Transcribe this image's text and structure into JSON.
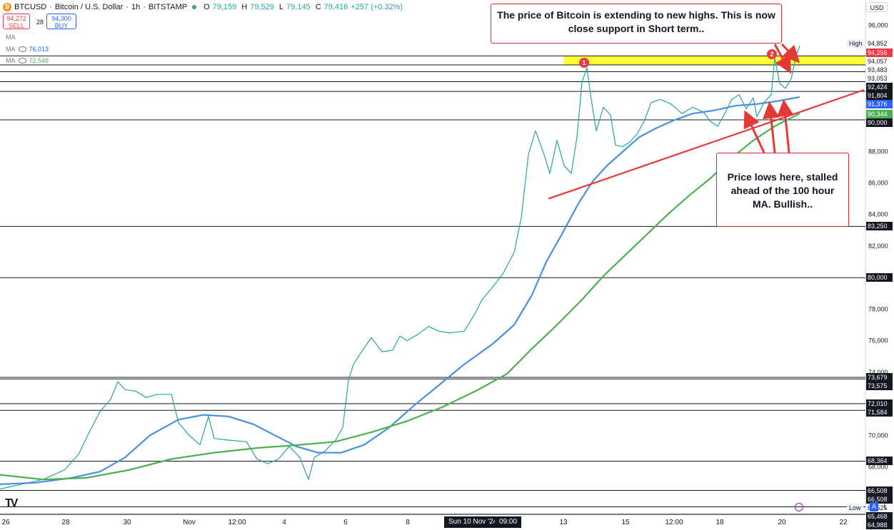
{
  "header": {
    "symbol": "BTCUSD",
    "sep1": "·",
    "name": "Bitcoin / U.S. Dollar",
    "sep2": "·",
    "interval": "1h",
    "sep3": "·",
    "exchange": "BITSTAMP",
    "ohlc": [
      {
        "k": "O",
        "v": "79,159"
      },
      {
        "k": "H",
        "v": "79,529"
      },
      {
        "k": "L",
        "v": "79,145"
      },
      {
        "k": "C",
        "v": "79,416"
      }
    ],
    "change": "+257 (+0.32%)",
    "sell_price": "94,272",
    "sell_label": "SELL",
    "spread": "28",
    "buy_price": "94,300",
    "buy_label": "BUY",
    "ma_rows": [
      {
        "label": "MA",
        "value": ""
      },
      {
        "label": "MA",
        "value": "76,013"
      },
      {
        "label": "MA",
        "value": "72,548"
      }
    ]
  },
  "currency": "USD",
  "chart_data": {
    "type": "line",
    "title": "",
    "y_range": [
      64000,
      97600
    ],
    "y_ticks": [
      "96,000",
      "94,000",
      "92,000",
      "90,000",
      "88,000",
      "86,000",
      "84,000",
      "82,000",
      "80,000",
      "78,000",
      "76,000",
      "74,000",
      "72,000",
      "70,000",
      "68,000",
      "66,000"
    ],
    "x_ticks": [
      "26",
      "28",
      "30",
      "Nov",
      "12:00",
      "4",
      "6",
      "8",
      "Sun 10 Nov '24",
      "09:00",
      "13",
      "15",
      "12:00",
      "18",
      "20",
      "22"
    ],
    "price_tags": [
      {
        "value": "94,852",
        "style": "plain",
        "side_label": "High"
      },
      {
        "value": "94,256",
        "style": "red"
      },
      {
        "value": "94,057",
        "style": "plain"
      },
      {
        "value": "93,483",
        "style": "plain"
      },
      {
        "value": "93,053",
        "style": "plain"
      },
      {
        "value": "92,424",
        "style": "dark"
      },
      {
        "value": "91,804",
        "style": "dark"
      },
      {
        "value": "91,376",
        "style": "blue"
      },
      {
        "value": "90,344",
        "style": "green"
      },
      {
        "value": "90,000",
        "style": "dark"
      },
      {
        "value": "83,250",
        "style": "dark"
      },
      {
        "value": "80,000",
        "style": "dark"
      },
      {
        "value": "73,679",
        "style": "dark"
      },
      {
        "value": "73,575",
        "style": "dark"
      },
      {
        "value": "72,010",
        "style": "dark"
      },
      {
        "value": "71,584",
        "style": "dark"
      },
      {
        "value": "68,364",
        "style": "dark"
      },
      {
        "value": "66,508",
        "style": "dark"
      },
      {
        "value": "66,508",
        "style": "dark"
      },
      {
        "value": "65,521",
        "style": "plain",
        "side_label": "Low"
      },
      {
        "value": "65,468",
        "style": "dark"
      },
      {
        "value": "64,988",
        "style": "dark"
      }
    ],
    "horizontal_levels": [
      94057,
      93483,
      93053,
      92424,
      91804,
      90000,
      83250,
      80000,
      73679,
      73575,
      72010,
      71584,
      68364,
      66508,
      65468,
      64988
    ],
    "support_zone": [
      93483,
      94057
    ],
    "series": [
      {
        "name": "",
        "color": "#26a69a",
        "points": [
          [
            0,
            66600
          ],
          [
            30,
            66900
          ],
          [
            60,
            67200
          ],
          [
            90,
            67800
          ],
          [
            110,
            68800
          ],
          [
            125,
            70200
          ],
          [
            140,
            71500
          ],
          [
            155,
            72300
          ],
          [
            165,
            73400
          ],
          [
            175,
            72900
          ],
          [
            190,
            72800
          ],
          [
            205,
            72400
          ],
          [
            220,
            72600
          ],
          [
            240,
            72600
          ],
          [
            250,
            70800
          ],
          [
            265,
            70000
          ],
          [
            280,
            69400
          ],
          [
            292,
            71200
          ],
          [
            300,
            69800
          ],
          [
            320,
            69700
          ],
          [
            345,
            69600
          ],
          [
            360,
            68500
          ],
          [
            375,
            68200
          ],
          [
            390,
            68500
          ],
          [
            405,
            69300
          ],
          [
            420,
            68600
          ],
          [
            432,
            67200
          ],
          [
            440,
            68600
          ],
          [
            455,
            69000
          ],
          [
            470,
            69700
          ],
          [
            480,
            70500
          ],
          [
            488,
            73500
          ],
          [
            495,
            74500
          ],
          [
            505,
            75200
          ],
          [
            520,
            76200
          ],
          [
            535,
            75300
          ],
          [
            550,
            75400
          ],
          [
            560,
            76300
          ],
          [
            570,
            76000
          ],
          [
            585,
            76400
          ],
          [
            600,
            76900
          ],
          [
            615,
            76600
          ],
          [
            630,
            76500
          ],
          [
            650,
            76600
          ],
          [
            665,
            77700
          ],
          [
            675,
            78600
          ],
          [
            690,
            79400
          ],
          [
            705,
            80300
          ],
          [
            720,
            81600
          ],
          [
            730,
            83800
          ],
          [
            740,
            87800
          ],
          [
            750,
            89300
          ],
          [
            762,
            87800
          ],
          [
            770,
            86600
          ],
          [
            780,
            88700
          ],
          [
            790,
            87100
          ],
          [
            800,
            86600
          ],
          [
            808,
            88900
          ],
          [
            815,
            92400
          ],
          [
            822,
            93300
          ],
          [
            828,
            91300
          ],
          [
            835,
            89300
          ],
          [
            845,
            90800
          ],
          [
            855,
            90300
          ],
          [
            862,
            88400
          ],
          [
            872,
            88300
          ],
          [
            882,
            88600
          ],
          [
            892,
            89100
          ],
          [
            902,
            89900
          ],
          [
            912,
            91100
          ],
          [
            925,
            91300
          ],
          [
            940,
            91000
          ],
          [
            955,
            90400
          ],
          [
            970,
            90800
          ],
          [
            985,
            90500
          ],
          [
            995,
            89900
          ],
          [
            1005,
            89600
          ],
          [
            1015,
            90400
          ],
          [
            1025,
            91300
          ],
          [
            1035,
            91600
          ],
          [
            1045,
            90700
          ],
          [
            1055,
            91400
          ],
          [
            1060,
            90200
          ],
          [
            1070,
            91100
          ],
          [
            1080,
            91600
          ],
          [
            1085,
            93900
          ],
          [
            1092,
            92300
          ],
          [
            1100,
            92000
          ],
          [
            1108,
            92600
          ],
          [
            1115,
            94100
          ],
          [
            1120,
            94700
          ]
        ]
      },
      {
        "name": "",
        "color": "#4a90e2",
        "points": [
          [
            0,
            66900
          ],
          [
            50,
            67000
          ],
          [
            100,
            67300
          ],
          [
            140,
            67700
          ],
          [
            175,
            68600
          ],
          [
            210,
            70000
          ],
          [
            250,
            71000
          ],
          [
            285,
            71300
          ],
          [
            320,
            71200
          ],
          [
            355,
            70700
          ],
          [
            385,
            70000
          ],
          [
            415,
            69300
          ],
          [
            445,
            68900
          ],
          [
            478,
            68900
          ],
          [
            510,
            69400
          ],
          [
            545,
            70500
          ],
          [
            580,
            71900
          ],
          [
            615,
            73200
          ],
          [
            650,
            74500
          ],
          [
            690,
            75800
          ],
          [
            720,
            77000
          ],
          [
            745,
            78900
          ],
          [
            765,
            81000
          ],
          [
            785,
            82600
          ],
          [
            810,
            84700
          ],
          [
            830,
            86100
          ],
          [
            850,
            87100
          ],
          [
            870,
            87900
          ],
          [
            895,
            88900
          ],
          [
            920,
            89500
          ],
          [
            945,
            90000
          ],
          [
            970,
            90400
          ],
          [
            1000,
            90600
          ],
          [
            1030,
            90900
          ],
          [
            1060,
            91000
          ],
          [
            1090,
            91200
          ],
          [
            1120,
            91450
          ]
        ]
      },
      {
        "name": "",
        "color": "#4caf50",
        "points": [
          [
            0,
            67500
          ],
          [
            60,
            67200
          ],
          [
            120,
            67300
          ],
          [
            180,
            67800
          ],
          [
            240,
            68500
          ],
          [
            300,
            68900
          ],
          [
            360,
            69200
          ],
          [
            420,
            69400
          ],
          [
            470,
            69600
          ],
          [
            520,
            70200
          ],
          [
            570,
            70900
          ],
          [
            620,
            71800
          ],
          [
            670,
            72900
          ],
          [
            710,
            73900
          ],
          [
            745,
            75500
          ],
          [
            780,
            77000
          ],
          [
            815,
            78600
          ],
          [
            845,
            80100
          ],
          [
            875,
            81400
          ],
          [
            905,
            82700
          ],
          [
            935,
            84000
          ],
          [
            965,
            85200
          ],
          [
            995,
            86300
          ],
          [
            1025,
            87600
          ],
          [
            1055,
            88700
          ],
          [
            1085,
            89600
          ],
          [
            1120,
            90400
          ]
        ]
      },
      {
        "name": "",
        "color": "#e53935",
        "points": [
          [
            768,
            85000
          ],
          [
            1210,
            91900
          ]
        ]
      }
    ]
  },
  "annotations": {
    "top_text": "The price of Bitcoin is extending to new highs.  This is now close support in Short term..",
    "low_text": "Price lows here, stalled ahead of the 100 hour MA. Bullish..",
    "marker1": "1",
    "marker2": "2"
  },
  "toolbar": {
    "auto_label": "A",
    "log_label": "L"
  },
  "logo_text": "TV"
}
